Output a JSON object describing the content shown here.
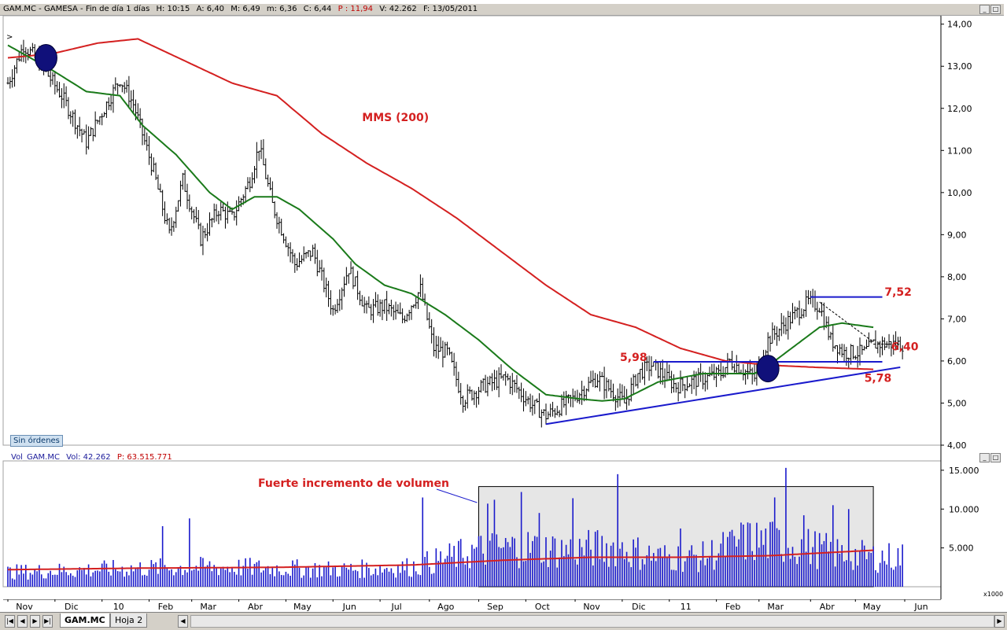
{
  "main_header": {
    "symbol": "GAM.MC - GAMESA - Fin de día 1 días",
    "h": "H: 10:15",
    "a": "A: 6,40",
    "m": "M: 6,49",
    "mn": "m: 6,36",
    "c": "C: 6,44",
    "p": "P : 11,94",
    "v": "V: 42.262",
    "f": "F: 13/05/2011"
  },
  "vol_header": {
    "name": "Vol_GAM.MC",
    "vol": "Vol: 42.262",
    "p": "P: 63.515.771"
  },
  "badge": "Sin órdenes",
  "tabs": [
    "GAM.MC",
    "Hoja 2"
  ],
  "vol_unit": "x1000",
  "colors": {
    "price": "#000000",
    "sma50": "#1a7a1a",
    "sma200": "#d42020",
    "annot": "#d42020",
    "support": "#1a1acc",
    "volume": "#1a1acc",
    "vol_ma": "#d42020",
    "circle": "#10107a"
  },
  "chart_data": [
    {
      "type": "line",
      "title": "",
      "ylim": [
        4,
        14.2
      ],
      "yticks": [
        "14,00",
        "13,00",
        "12,00",
        "11,00",
        "10,00",
        "9,00",
        "8,00",
        "7,00",
        "6,00",
        "5,00",
        "4,00"
      ],
      "yticks_values": [
        14,
        13,
        12,
        11,
        10,
        9,
        8,
        7,
        6,
        5,
        4
      ],
      "xtick_labels": [
        "Nov",
        "Dic",
        "10",
        "Feb",
        "Mar",
        "Abr",
        "May",
        "Jun",
        "Jul",
        "Ago",
        "Sep",
        "Oct",
        "Nov",
        "Dic",
        "11",
        "Feb",
        "Mar",
        "Abr",
        "May",
        "Jun"
      ],
      "xtick_index": [
        0,
        21,
        42,
        63,
        82,
        103,
        124,
        145,
        166,
        188,
        210,
        231,
        253,
        274,
        295,
        316,
        335,
        358,
        378,
        400
      ],
      "n_days": 399,
      "price_close_keypoints": [
        [
          0,
          12.6
        ],
        [
          7,
          13.5
        ],
        [
          14,
          13.1
        ],
        [
          24,
          12.3
        ],
        [
          35,
          11.2
        ],
        [
          42,
          11.9
        ],
        [
          50,
          12.7
        ],
        [
          56,
          12.1
        ],
        [
          65,
          10.5
        ],
        [
          72,
          9.0
        ],
        [
          78,
          10.3
        ],
        [
          86,
          8.9
        ],
        [
          94,
          9.6
        ],
        [
          100,
          9.4
        ],
        [
          108,
          10.3
        ],
        [
          112,
          11.1
        ],
        [
          118,
          9.7
        ],
        [
          128,
          8.3
        ],
        [
          136,
          8.6
        ],
        [
          145,
          7.2
        ],
        [
          152,
          8.2
        ],
        [
          160,
          7.2
        ],
        [
          168,
          7.3
        ],
        [
          176,
          7.0
        ],
        [
          184,
          7.7
        ],
        [
          190,
          6.3
        ],
        [
          196,
          6.2
        ],
        [
          203,
          5.1
        ],
        [
          212,
          5.4
        ],
        [
          222,
          5.6
        ],
        [
          226,
          5.4
        ],
        [
          233,
          5.0
        ],
        [
          240,
          4.7
        ],
        [
          252,
          5.1
        ],
        [
          258,
          5.4
        ],
        [
          263,
          5.6
        ],
        [
          275,
          5.0
        ],
        [
          281,
          5.7
        ],
        [
          287,
          5.9
        ],
        [
          298,
          5.4
        ],
        [
          318,
          5.7
        ],
        [
          322,
          6.0
        ],
        [
          333,
          5.6
        ],
        [
          339,
          6.5
        ],
        [
          349,
          7.0
        ],
        [
          357,
          7.4
        ],
        [
          362,
          7.3
        ],
        [
          367,
          6.5
        ],
        [
          373,
          6.2
        ],
        [
          382,
          6.2
        ],
        [
          386,
          6.4
        ]
      ],
      "series": [
        {
          "name": "",
          "values_from": "price_close_keypoints"
        },
        {
          "name": "MMS (200)",
          "keypoints": [
            [
              0,
              13.2
            ],
            [
              20,
              13.3
            ],
            [
              40,
              13.55
            ],
            [
              58,
              13.65
            ],
            [
              80,
              13.1
            ],
            [
              100,
              12.6
            ],
            [
              120,
              12.3
            ],
            [
              140,
              11.4
            ],
            [
              160,
              10.7
            ],
            [
              180,
              10.1
            ],
            [
              200,
              9.4
            ],
            [
              220,
              8.6
            ],
            [
              240,
              7.8
            ],
            [
              260,
              7.1
            ],
            [
              280,
              6.8
            ],
            [
              300,
              6.3
            ],
            [
              320,
              6.0
            ],
            [
              340,
              5.9
            ],
            [
              360,
              5.85
            ],
            [
              386,
              5.8
            ]
          ]
        },
        {
          "name": "",
          "keypoints": [
            [
              0,
              13.5
            ],
            [
              10,
              13.2
            ],
            [
              20,
              12.9
            ],
            [
              35,
              12.4
            ],
            [
              50,
              12.3
            ],
            [
              60,
              11.6
            ],
            [
              75,
              10.9
            ],
            [
              90,
              10.0
            ],
            [
              100,
              9.6
            ],
            [
              110,
              9.9
            ],
            [
              120,
              9.9
            ],
            [
              130,
              9.6
            ],
            [
              145,
              8.9
            ],
            [
              155,
              8.3
            ],
            [
              168,
              7.8
            ],
            [
              180,
              7.6
            ],
            [
              195,
              7.1
            ],
            [
              210,
              6.5
            ],
            [
              225,
              5.8
            ],
            [
              240,
              5.2
            ],
            [
              255,
              5.1
            ],
            [
              265,
              5.05
            ],
            [
              275,
              5.1
            ],
            [
              290,
              5.5
            ],
            [
              310,
              5.7
            ],
            [
              320,
              5.7
            ],
            [
              333,
              5.7
            ],
            [
              342,
              6.0
            ],
            [
              352,
              6.4
            ],
            [
              362,
              6.8
            ],
            [
              372,
              6.9
            ],
            [
              386,
              6.8
            ]
          ]
        }
      ],
      "annotations": [
        {
          "text": "MMS (200)",
          "x": 158,
          "y": 11.7
        },
        {
          "text": "7,52",
          "x": 391,
          "y": 7.55
        },
        {
          "text": "5,98",
          "x": 273,
          "y": 6.0
        },
        {
          "text": "6,40",
          "x": 394,
          "y": 6.25
        },
        {
          "text": "5,78",
          "x": 382,
          "y": 5.5
        }
      ],
      "lines": [
        {
          "name": "support",
          "from": [
            240,
            4.5
          ],
          "to": [
            398,
            5.85
          ]
        },
        {
          "name": "resistance-5,98",
          "from": [
            288,
            5.98
          ],
          "to": [
            390,
            5.98
          ]
        },
        {
          "name": "resistance-7,52",
          "from": [
            358,
            7.52
          ],
          "to": [
            390,
            7.52
          ]
        },
        {
          "name": "current-6,40",
          "from": [
            386,
            6.4
          ],
          "to": [
            398,
            6.4
          ]
        }
      ],
      "circles": [
        [
          17,
          13.2
        ],
        [
          339,
          5.82
        ]
      ]
    },
    {
      "type": "bar",
      "title": "",
      "ylim": [
        0,
        16000
      ],
      "yticks": [
        "15.000",
        "10.000",
        "5.000"
      ],
      "yticks_values": [
        15000,
        10000,
        5000
      ],
      "annotation": "Fuerte incremento de volumen",
      "volume_keypoints": [
        [
          0,
          2200
        ],
        [
          30,
          2500
        ],
        [
          60,
          2800
        ],
        [
          90,
          3000
        ],
        [
          120,
          2800
        ],
        [
          150,
          2600
        ],
        [
          180,
          3000
        ],
        [
          210,
          5500
        ],
        [
          230,
          6000
        ],
        [
          250,
          5500
        ],
        [
          270,
          6000
        ],
        [
          290,
          4500
        ],
        [
          310,
          4500
        ],
        [
          330,
          7000
        ],
        [
          350,
          6500
        ],
        [
          370,
          5000
        ],
        [
          386,
          4500
        ]
      ],
      "spikes": [
        [
          69,
          7800
        ],
        [
          81,
          8800
        ],
        [
          185,
          11500
        ],
        [
          214,
          10700
        ],
        [
          217,
          11200
        ],
        [
          229,
          12200
        ],
        [
          237,
          9500
        ],
        [
          252,
          11400
        ],
        [
          272,
          14500
        ],
        [
          300,
          7500
        ],
        [
          328,
          8000
        ],
        [
          342,
          11500
        ],
        [
          347,
          15300
        ],
        [
          355,
          9200
        ],
        [
          368,
          10500
        ],
        [
          375,
          10000
        ]
      ],
      "ma_keypoints": [
        [
          0,
          2200
        ],
        [
          60,
          2400
        ],
        [
          120,
          2500
        ],
        [
          180,
          2800
        ],
        [
          220,
          3400
        ],
        [
          260,
          3800
        ],
        [
          300,
          3800
        ],
        [
          340,
          4000
        ],
        [
          386,
          4700
        ]
      ],
      "highlight_box": {
        "from_index": 210,
        "to_index": 386,
        "top": 12900
      }
    }
  ]
}
